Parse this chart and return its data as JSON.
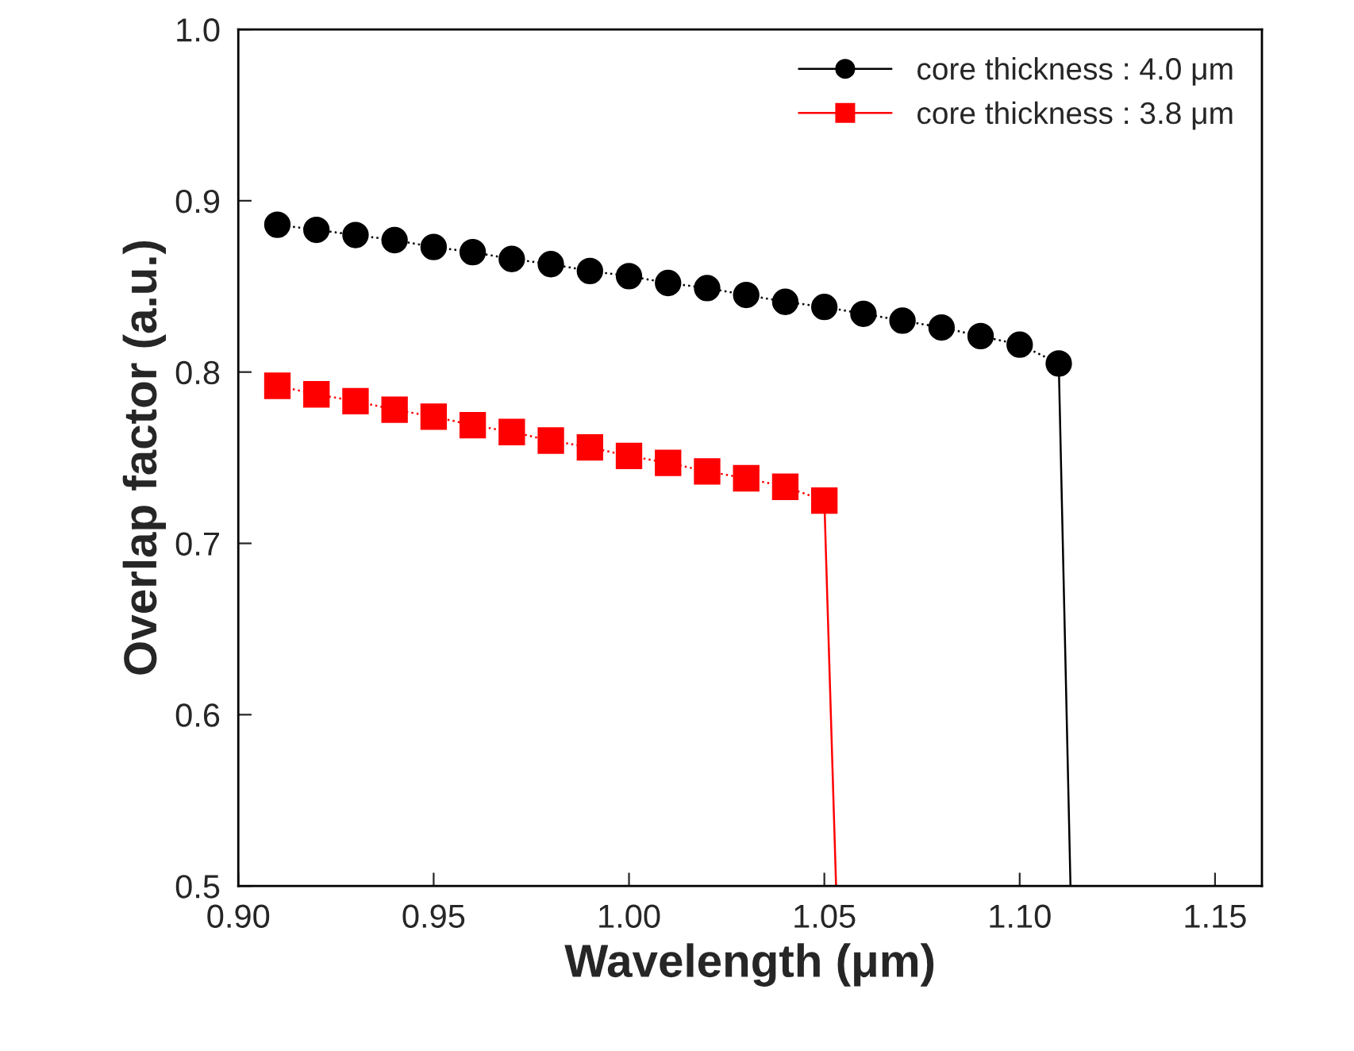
{
  "chart_data": {
    "type": "line",
    "xlabel": "Wavelength (μm)",
    "ylabel": "Overlap factor (a.u.)",
    "xlim": [
      0.9,
      1.162
    ],
    "ylim": [
      0.5,
      1.0
    ],
    "xticks": [
      {
        "value": 0.9,
        "label": "0.90"
      },
      {
        "value": 0.95,
        "label": "0.95"
      },
      {
        "value": 1.0,
        "label": "1.00"
      },
      {
        "value": 1.05,
        "label": "1.05"
      },
      {
        "value": 1.1,
        "label": "1.10"
      },
      {
        "value": 1.15,
        "label": "1.15"
      }
    ],
    "yticks": [
      0.5,
      0.6,
      0.7,
      0.8,
      0.9,
      {
        "value": 1.0,
        "label": "1.0"
      }
    ],
    "grid": false,
    "legend": "top right",
    "series": [
      {
        "name": "core thickness : 4.0 μm",
        "color": "#000000",
        "marker": "circle",
        "line_style": "dotted",
        "x": [
          0.91,
          0.92,
          0.93,
          0.94,
          0.95,
          0.96,
          0.97,
          0.98,
          0.99,
          1.0,
          1.01,
          1.02,
          1.03,
          1.04,
          1.05,
          1.06,
          1.07,
          1.08,
          1.09,
          1.1,
          1.11
        ],
        "values": [
          0.886,
          0.883,
          0.88,
          0.877,
          0.873,
          0.87,
          0.866,
          0.863,
          0.859,
          0.856,
          0.852,
          0.849,
          0.845,
          0.841,
          0.838,
          0.834,
          0.83,
          0.826,
          0.821,
          0.816,
          0.805
        ]
      },
      {
        "name": "core thickness : 3.8 μm",
        "color": "#ff0000",
        "marker": "square",
        "line_style": "dotted",
        "x": [
          0.91,
          0.92,
          0.93,
          0.94,
          0.95,
          0.96,
          0.97,
          0.98,
          0.99,
          1.0,
          1.01,
          1.02,
          1.03,
          1.04,
          1.05
        ],
        "values": [
          0.792,
          0.787,
          0.783,
          0.778,
          0.774,
          0.769,
          0.765,
          0.76,
          0.756,
          0.751,
          0.747,
          0.742,
          0.738,
          0.733,
          0.725
        ]
      },
      {
        "color": "#000000",
        "marker": "none",
        "line_style": "solid",
        "x": [
          1.11,
          1.113
        ],
        "values": [
          0.805,
          0.5
        ]
      },
      {
        "color": "#ff0000",
        "marker": "none",
        "line_style": "solid",
        "x": [
          1.05,
          1.053
        ],
        "values": [
          0.725,
          0.5
        ]
      }
    ]
  }
}
